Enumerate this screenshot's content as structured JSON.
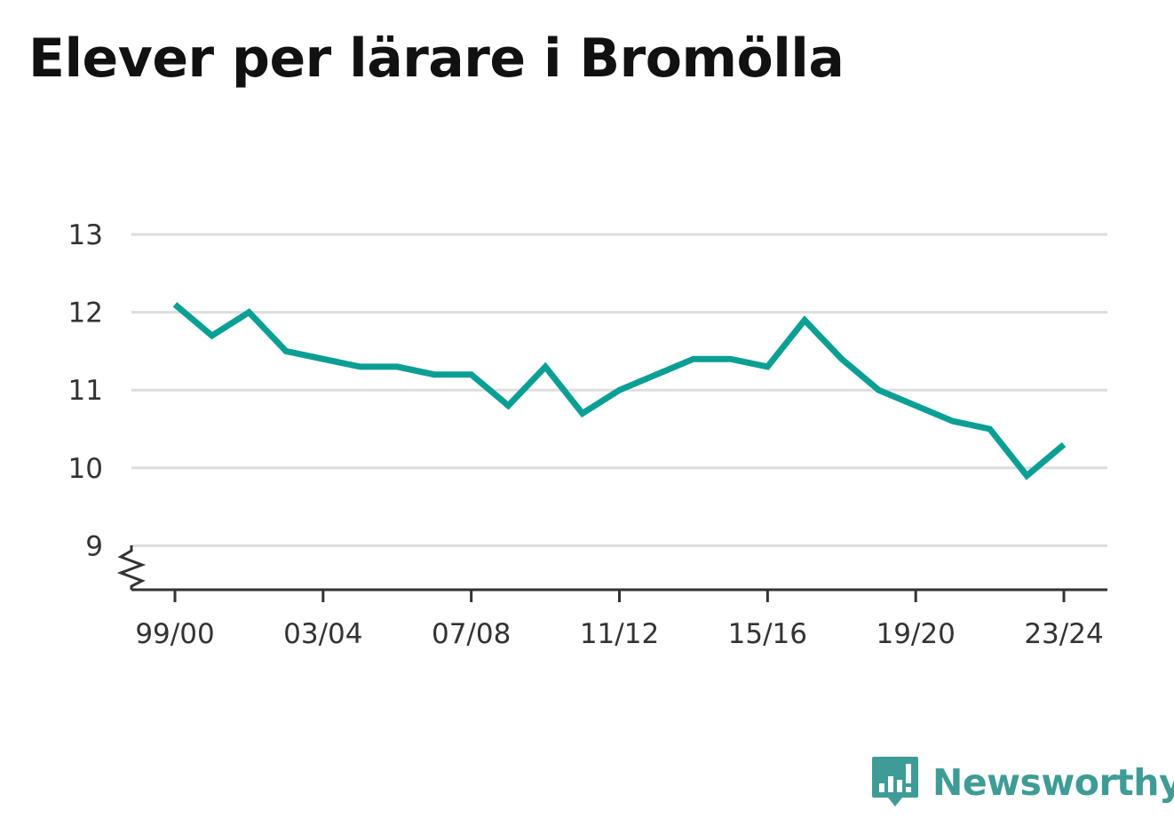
{
  "title": "Elever per lärare i Bromölla",
  "brand": {
    "name": "Newsworthy",
    "logo_icon": "newsworthy-logo-icon"
  },
  "colors": {
    "line": "#0a9f94",
    "grid": "#dddddd",
    "axis": "#333333",
    "brand": "#3f9b96"
  },
  "chart_data": {
    "type": "line",
    "title": "Elever per lärare i Bromölla",
    "xlabel": "",
    "ylabel": "",
    "x": [
      "99/00",
      "00/01",
      "01/02",
      "02/03",
      "03/04",
      "04/05",
      "05/06",
      "06/07",
      "07/08",
      "08/09",
      "09/10",
      "10/11",
      "11/12",
      "12/13",
      "13/14",
      "14/15",
      "15/16",
      "16/17",
      "17/18",
      "18/19",
      "19/20",
      "20/21",
      "21/22",
      "22/23",
      "23/24"
    ],
    "x_tick_labels": [
      "99/00",
      "03/04",
      "07/08",
      "11/12",
      "15/16",
      "19/20",
      "23/24"
    ],
    "series": [
      {
        "values": [
          12.1,
          11.7,
          12.0,
          11.5,
          11.4,
          11.3,
          11.3,
          11.2,
          11.2,
          10.8,
          11.3,
          10.7,
          11.0,
          11.2,
          11.4,
          11.4,
          11.3,
          11.9,
          11.4,
          11.0,
          10.8,
          10.6,
          10.5,
          9.9,
          10.3
        ]
      }
    ],
    "y_ticks": [
      "9",
      "10",
      "11",
      "12",
      "13"
    ],
    "ylim": [
      8.6,
      13
    ],
    "y_axis_break": true,
    "grid": true,
    "legend": "none"
  }
}
